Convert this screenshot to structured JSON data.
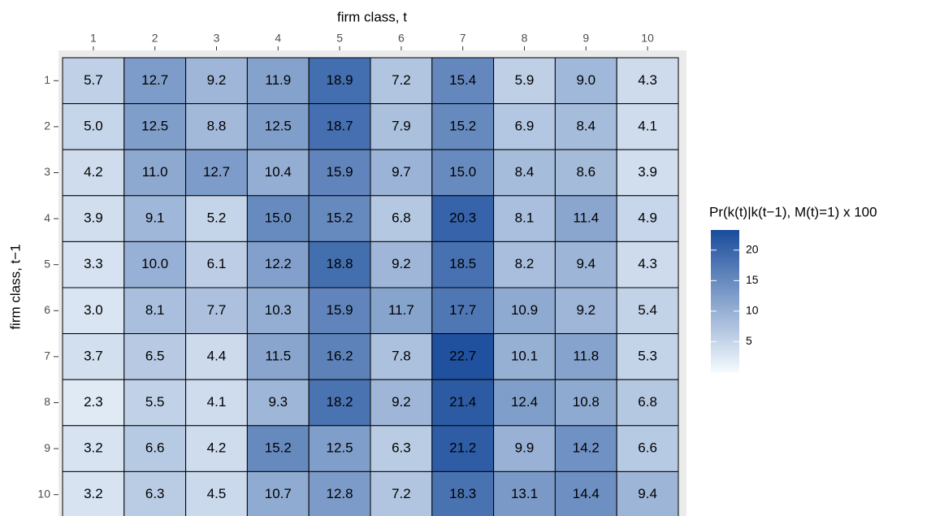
{
  "chart_data": {
    "type": "heatmap",
    "x_title": "firm class, t",
    "y_title": "firm class, t−1",
    "legend_title": "Pr(k(t)|k(t−1), M(t)=1) x 100",
    "x_categories": [
      "1",
      "2",
      "3",
      "4",
      "5",
      "6",
      "7",
      "8",
      "9",
      "10"
    ],
    "y_categories": [
      "1",
      "2",
      "3",
      "4",
      "5",
      "6",
      "7",
      "8",
      "9",
      "10"
    ],
    "values": [
      [
        5.7,
        12.7,
        9.2,
        11.9,
        18.9,
        7.2,
        15.4,
        5.9,
        9.0,
        4.3
      ],
      [
        5.0,
        12.5,
        8.8,
        12.5,
        18.7,
        7.9,
        15.2,
        6.9,
        8.4,
        4.1
      ],
      [
        4.2,
        11.0,
        12.7,
        10.4,
        15.9,
        9.7,
        15.0,
        8.4,
        8.6,
        3.9
      ],
      [
        3.9,
        9.1,
        5.2,
        15.0,
        15.2,
        6.8,
        20.3,
        8.1,
        11.4,
        4.9
      ],
      [
        3.3,
        10.0,
        6.1,
        12.2,
        18.8,
        9.2,
        18.5,
        8.2,
        9.4,
        4.3
      ],
      [
        3.0,
        8.1,
        7.7,
        10.3,
        15.9,
        11.7,
        17.7,
        10.9,
        9.2,
        5.4
      ],
      [
        3.7,
        6.5,
        4.4,
        11.5,
        16.2,
        7.8,
        22.7,
        10.1,
        11.8,
        5.3
      ],
      [
        2.3,
        5.5,
        4.1,
        9.3,
        18.2,
        9.2,
        21.4,
        12.4,
        10.8,
        6.8
      ],
      [
        3.2,
        6.6,
        4.2,
        15.2,
        12.5,
        6.3,
        21.2,
        9.9,
        14.2,
        6.6
      ],
      [
        3.2,
        6.3,
        4.5,
        10.7,
        12.8,
        7.2,
        18.3,
        13.1,
        14.4,
        9.4
      ]
    ],
    "value_labels": [
      [
        "5.7",
        "12.7",
        "9.2",
        "11.9",
        "18.9",
        "7.2",
        "15.4",
        "5.9",
        "9.0",
        "4.3"
      ],
      [
        "5.0",
        "12.5",
        "8.8",
        "12.5",
        "18.7",
        "7.9",
        "15.2",
        "6.9",
        "8.4",
        "4.1"
      ],
      [
        "4.2",
        "11.0",
        "12.7",
        "10.4",
        "15.9",
        "9.7",
        "15.0",
        "8.4",
        "8.6",
        "3.9"
      ],
      [
        "3.9",
        "9.1",
        "5.2",
        "15.0",
        "15.2",
        "6.8",
        "20.3",
        "8.1",
        "11.4",
        "4.9"
      ],
      [
        "3.3",
        "10.0",
        "6.1",
        "12.2",
        "18.8",
        "9.2",
        "18.5",
        "8.2",
        "9.4",
        "4.3"
      ],
      [
        "3.0",
        "8.1",
        "7.7",
        "10.3",
        "15.9",
        "11.7",
        "17.7",
        "10.9",
        "9.2",
        "5.4"
      ],
      [
        "3.7",
        "6.5",
        "4.4",
        "11.5",
        "16.2",
        "7.8",
        "22.7",
        "10.1",
        "11.8",
        "5.3"
      ],
      [
        "2.3",
        "5.5",
        "4.1",
        "9.3",
        "18.2",
        "9.2",
        "21.4",
        "12.4",
        "10.8",
        "6.8"
      ],
      [
        "3.2",
        "6.6",
        "4.2",
        "15.2",
        "12.5",
        "6.3",
        "21.2",
        "9.9",
        "14.2",
        "6.6"
      ],
      [
        "3.2",
        "6.3",
        "4.5",
        "10.7",
        "12.8",
        "7.2",
        "18.3",
        "13.1",
        "14.4",
        "9.4"
      ]
    ],
    "color_low": "#f5fbff",
    "color_high": "#1a4d9c",
    "colorlim": [
      0,
      23.3
    ],
    "colorticks": [
      5,
      10,
      15,
      20
    ]
  }
}
